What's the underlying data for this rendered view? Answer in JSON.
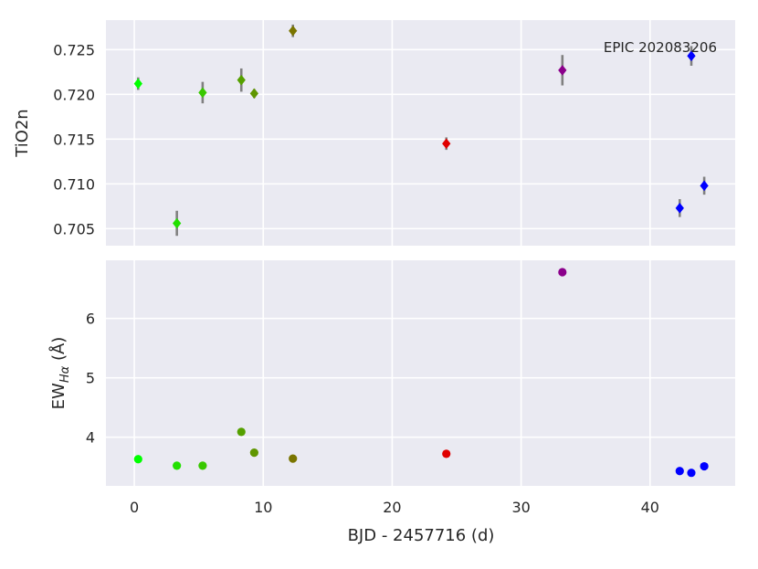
{
  "chart_data": {
    "type": "scatter",
    "annotation": "EPIC 202083206",
    "xlabel": "BJD - 2457716 (d)",
    "xlim": [
      -2.2,
      46.6
    ],
    "xticks": [
      0,
      10,
      20,
      30,
      40
    ],
    "grid": true,
    "panels": [
      {
        "ylabel_main": "TiO2n",
        "ylabel_sub": "",
        "ylim": [
          0.7031,
          0.7283
        ],
        "yticks": [
          0.705,
          0.71,
          0.715,
          0.72,
          0.725
        ],
        "ytick_labels": [
          "0.705",
          "0.710",
          "0.715",
          "0.720",
          "0.725"
        ],
        "marker": "diamond",
        "points": [
          {
            "x": 0.3,
            "y": 0.7212,
            "err": 0.0007,
            "color": "#00ff00"
          },
          {
            "x": 3.3,
            "y": 0.7056,
            "err": 0.0014,
            "color": "#22e000"
          },
          {
            "x": 5.3,
            "y": 0.7202,
            "err": 0.0012,
            "color": "#38c800"
          },
          {
            "x": 8.3,
            "y": 0.7216,
            "err": 0.0013,
            "color": "#55a000"
          },
          {
            "x": 9.3,
            "y": 0.7201,
            "err": 0.0005,
            "color": "#5f9600"
          },
          {
            "x": 12.3,
            "y": 0.7271,
            "err": 0.0007,
            "color": "#7a7500"
          },
          {
            "x": 24.2,
            "y": 0.7145,
            "err": 0.0007,
            "color": "#e00000"
          },
          {
            "x": 33.2,
            "y": 0.7227,
            "err": 0.0017,
            "color": "#8b008b"
          },
          {
            "x": 42.3,
            "y": 0.7073,
            "err": 0.001,
            "color": "#0000ff"
          },
          {
            "x": 43.2,
            "y": 0.7243,
            "err": 0.0011,
            "color": "#0000ff"
          },
          {
            "x": 44.2,
            "y": 0.7098,
            "err": 0.001,
            "color": "#0000ff"
          }
        ]
      },
      {
        "ylabel_main": "EW",
        "ylabel_sub": "Hα",
        "ylabel_unit": " (Å)",
        "ylim": [
          3.18,
          6.98
        ],
        "yticks": [
          4,
          5,
          6
        ],
        "ytick_labels": [
          "4",
          "5",
          "6"
        ],
        "marker": "circle",
        "points": [
          {
            "x": 0.3,
            "y": 3.63,
            "color": "#00ff00"
          },
          {
            "x": 3.3,
            "y": 3.52,
            "color": "#22e000"
          },
          {
            "x": 5.3,
            "y": 3.52,
            "color": "#38c800"
          },
          {
            "x": 8.3,
            "y": 4.09,
            "color": "#55a000"
          },
          {
            "x": 9.3,
            "y": 3.74,
            "color": "#5f9600"
          },
          {
            "x": 12.3,
            "y": 3.64,
            "color": "#7a7500"
          },
          {
            "x": 24.2,
            "y": 3.72,
            "color": "#e00000"
          },
          {
            "x": 33.2,
            "y": 6.78,
            "color": "#8b008b"
          },
          {
            "x": 42.3,
            "y": 3.43,
            "color": "#0000ff"
          },
          {
            "x": 43.2,
            "y": 3.4,
            "color": "#0000ff"
          },
          {
            "x": 44.2,
            "y": 3.51,
            "color": "#0000ff"
          }
        ]
      }
    ]
  }
}
